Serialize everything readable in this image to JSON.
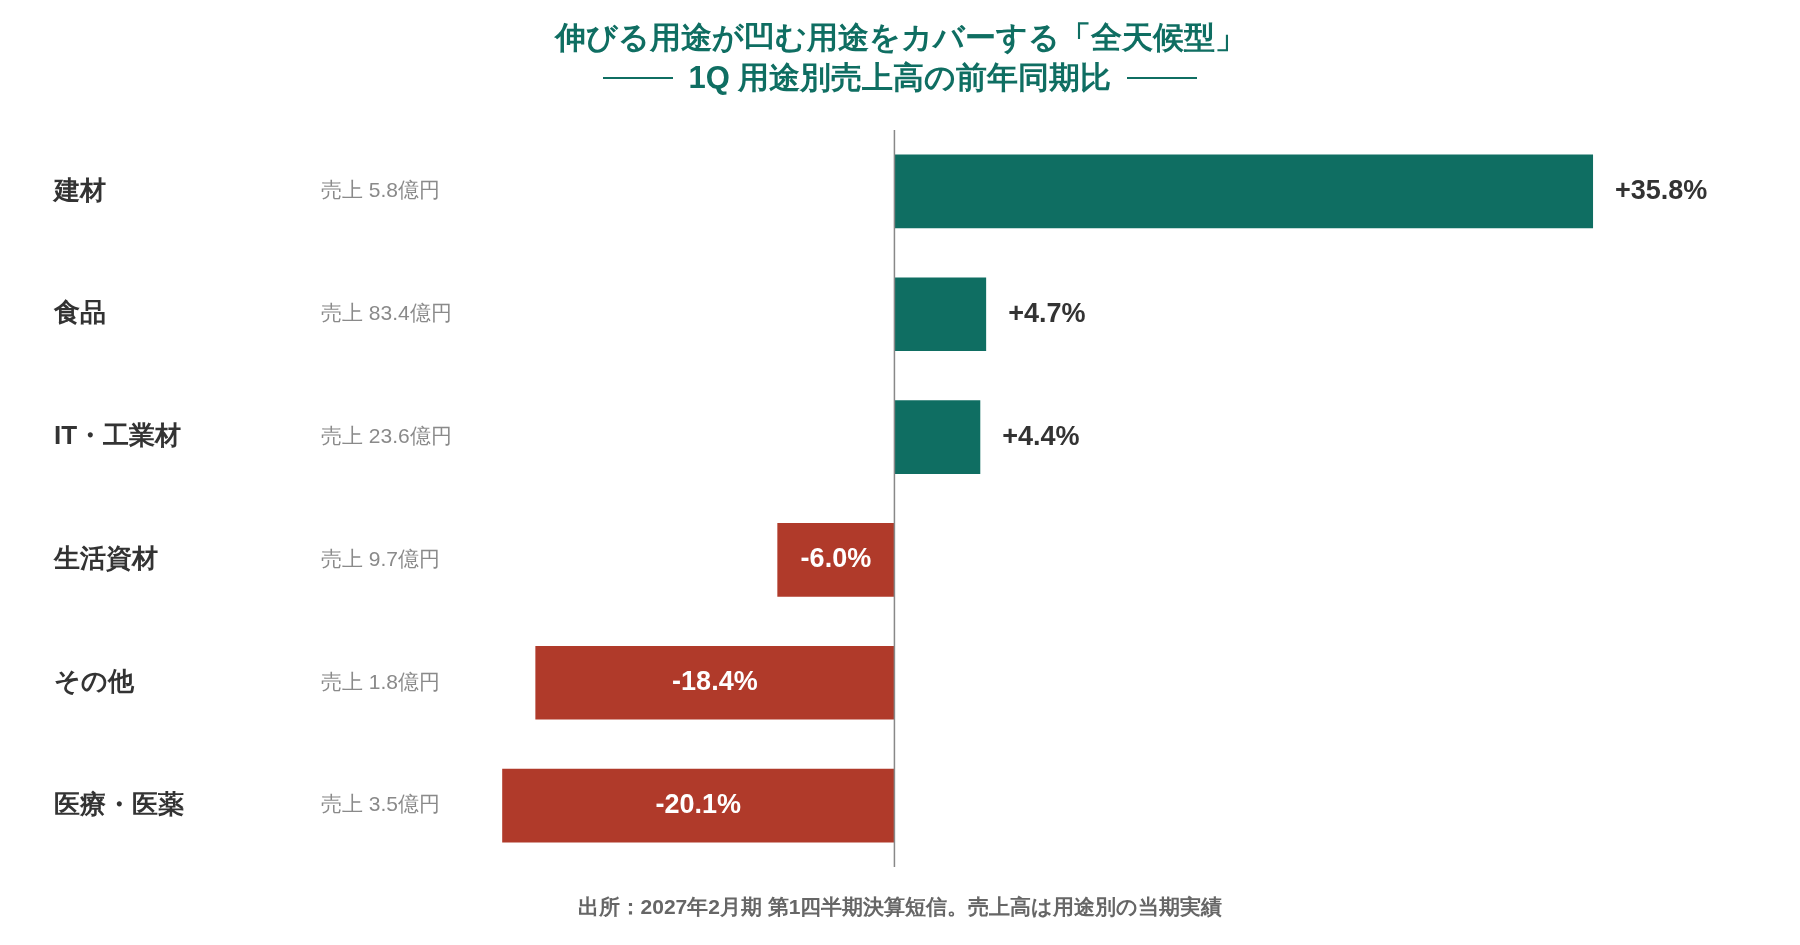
{
  "chart_data": {
    "type": "bar",
    "orientation": "horizontal",
    "title": "伸びる用途が凹む用途をカバーする「全天候型」",
    "subtitle": "1Q 用途別売上高の前年同期比",
    "categories": [
      "建材",
      "食品",
      "IT・工業材",
      "生活資材",
      "その他",
      "医療・医薬"
    ],
    "values": [
      35.8,
      4.7,
      4.4,
      -6.0,
      -18.4,
      -20.1
    ],
    "colors": [
      "#0f6e62",
      "#0f6e62",
      "#0f6e62",
      "#b03a2a",
      "#b03a2a",
      "#b03a2a"
    ],
    "value_labels": [
      "+35.8%",
      "+4.7%",
      "+4.4%",
      "-6.0%",
      "-18.4%",
      "-20.1%"
    ],
    "grid": false,
    "legend": false,
    "tick_labels": "y",
    "annotations": [
      "売上 5.8億円",
      "売上 83.4億円",
      "売上 23.6億円",
      "売上 9.7億円",
      "売上 1.8億円",
      "売上 3.5億円",
      "出所：2027年2月期 第1四半期決算短信。売上高は用途別の当期実績"
    ]
  }
}
